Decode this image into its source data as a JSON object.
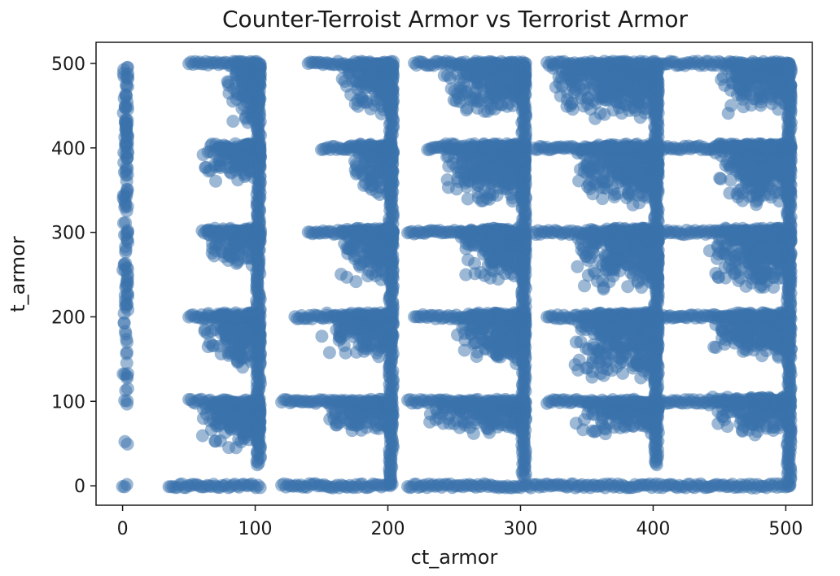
{
  "chart_data": {
    "type": "scatter",
    "title": "Counter-Terroist Armor vs Terrorist Armor",
    "xlabel": "ct_armor",
    "ylabel": "t_armor",
    "xlim": [
      -20,
      520
    ],
    "ylim": [
      -23,
      525
    ],
    "xticks": [
      0,
      100,
      200,
      300,
      400,
      500
    ],
    "yticks": [
      0,
      100,
      200,
      300,
      400,
      500
    ],
    "grid": false,
    "legend": "none",
    "color": "#3a72ac",
    "opacity": 0.5,
    "bands": [
      {
        "x": [
          0,
          4
        ],
        "y": [
          25,
          500
        ]
      },
      {
        "x": [
          58,
          104
        ],
        "y": [
          40,
          100
        ]
      },
      {
        "x": [
          58,
          104
        ],
        "y": [
          140,
          205
        ]
      },
      {
        "x": [
          58,
          104
        ],
        "y": [
          260,
          305
        ]
      },
      {
        "x": [
          58,
          104
        ],
        "y": [
          360,
          405
        ]
      },
      {
        "x": [
          78,
          104
        ],
        "y": [
          420,
          500
        ]
      },
      {
        "x": [
          150,
          204
        ],
        "y": [
          60,
          100
        ]
      },
      {
        "x": [
          150,
          204
        ],
        "y": [
          150,
          205
        ]
      },
      {
        "x": [
          160,
          204
        ],
        "y": [
          240,
          305
        ]
      },
      {
        "x": [
          170,
          204
        ],
        "y": [
          340,
          405
        ]
      },
      {
        "x": [
          160,
          204
        ],
        "y": [
          440,
          500
        ]
      },
      {
        "x": [
          230,
          304
        ],
        "y": [
          60,
          100
        ]
      },
      {
        "x": [
          250,
          304
        ],
        "y": [
          140,
          205
        ]
      },
      {
        "x": [
          250,
          304
        ],
        "y": [
          240,
          305
        ]
      },
      {
        "x": [
          240,
          304
        ],
        "y": [
          330,
          405
        ]
      },
      {
        "x": [
          240,
          304
        ],
        "y": [
          440,
          500
        ]
      },
      {
        "x": [
          340,
          404
        ],
        "y": [
          60,
          100
        ]
      },
      {
        "x": [
          340,
          404
        ],
        "y": [
          120,
          205
        ]
      },
      {
        "x": [
          340,
          404
        ],
        "y": [
          230,
          305
        ]
      },
      {
        "x": [
          340,
          404
        ],
        "y": [
          330,
          405
        ]
      },
      {
        "x": [
          320,
          404
        ],
        "y": [
          430,
          500
        ]
      },
      {
        "x": [
          440,
          504
        ],
        "y": [
          60,
          105
        ]
      },
      {
        "x": [
          440,
          504
        ],
        "y": [
          150,
          205
        ]
      },
      {
        "x": [
          440,
          504
        ],
        "y": [
          230,
          305
        ]
      },
      {
        "x": [
          440,
          504
        ],
        "y": [
          330,
          405
        ]
      },
      {
        "x": [
          450,
          504
        ],
        "y": [
          440,
          500
        ]
      }
    ],
    "rows": [
      {
        "y": 0,
        "x": [
          0,
          4
        ]
      },
      {
        "y": 0,
        "x": [
          35,
          104
        ]
      },
      {
        "y": 0,
        "x": [
          120,
          204
        ]
      },
      {
        "y": 0,
        "x": [
          215,
          504
        ]
      },
      {
        "y": 100,
        "x": [
          50,
          104
        ]
      },
      {
        "y": 100,
        "x": [
          120,
          204
        ]
      },
      {
        "y": 100,
        "x": [
          215,
          304
        ]
      },
      {
        "y": 100,
        "x": [
          320,
          504
        ]
      },
      {
        "y": 200,
        "x": [
          50,
          104
        ]
      },
      {
        "y": 200,
        "x": [
          130,
          204
        ]
      },
      {
        "y": 200,
        "x": [
          220,
          304
        ]
      },
      {
        "y": 200,
        "x": [
          320,
          504
        ]
      },
      {
        "y": 300,
        "x": [
          60,
          104
        ]
      },
      {
        "y": 300,
        "x": [
          140,
          204
        ]
      },
      {
        "y": 300,
        "x": [
          215,
          304
        ]
      },
      {
        "y": 300,
        "x": [
          310,
          504
        ]
      },
      {
        "y": 400,
        "x": [
          70,
          104
        ]
      },
      {
        "y": 400,
        "x": [
          150,
          204
        ]
      },
      {
        "y": 400,
        "x": [
          230,
          304
        ]
      },
      {
        "y": 400,
        "x": [
          310,
          504
        ]
      },
      {
        "y": 500,
        "x": [
          50,
          104
        ]
      },
      {
        "y": 500,
        "x": [
          140,
          204
        ]
      },
      {
        "y": 500,
        "x": [
          220,
          304
        ]
      },
      {
        "y": 500,
        "x": [
          320,
          504
        ]
      }
    ],
    "columns": [
      {
        "x": 104,
        "y": [
          25,
          500
        ]
      },
      {
        "x": 204,
        "y": [
          0,
          500
        ]
      },
      {
        "x": 304,
        "y": [
          10,
          500
        ]
      },
      {
        "x": 404,
        "y": [
          25,
          500
        ]
      },
      {
        "x": 504,
        "y": [
          0,
          500
        ]
      }
    ]
  }
}
